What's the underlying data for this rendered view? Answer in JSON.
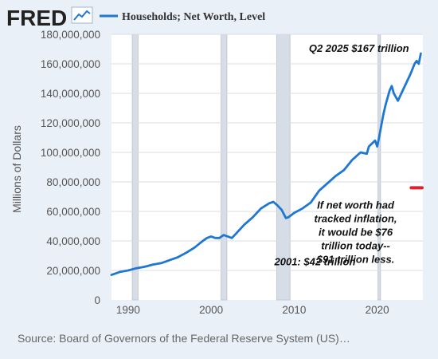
{
  "header": {
    "logo_text": "FRED",
    "logo_icon": "trend-line-icon",
    "legend_label": "Households; Net Worth, Level"
  },
  "colors": {
    "series": "#1f77d4",
    "recession_band": "#d7dde6",
    "plot_background": "#ffffff",
    "page_background": "#eaf0f8",
    "inflation_marker": "#e0202a"
  },
  "chart_data": {
    "type": "line",
    "title": "",
    "xlabel": "",
    "ylabel": "Millions of Dollars",
    "xlim": [
      1988.0,
      2025.5
    ],
    "ylim": [
      0,
      180000000
    ],
    "x_ticks": [
      1990,
      2000,
      2010,
      2020
    ],
    "x_tick_labels": [
      "1990",
      "2000",
      "2010",
      "2020"
    ],
    "y_ticks": [
      0,
      20000000,
      40000000,
      60000000,
      80000000,
      100000000,
      120000000,
      140000000,
      160000000,
      180000000
    ],
    "y_tick_labels": [
      "0",
      "20,000,000",
      "40,000,000",
      "60,000,000",
      "80,000,000",
      "100,000,000",
      "120,000,000",
      "140,000,000",
      "160,000,000",
      "180,000,000"
    ],
    "grid": true,
    "recessions": [
      {
        "start": 1990.5,
        "end": 1991.2
      },
      {
        "start": 2001.2,
        "end": 2001.9
      },
      {
        "start": 2007.9,
        "end": 2009.5
      },
      {
        "start": 2020.1,
        "end": 2020.4
      }
    ],
    "series": [
      {
        "name": "Households; Net Worth, Level",
        "x": [
          1988.0,
          1989.0,
          1990.0,
          1991.0,
          1992.0,
          1993.0,
          1994.0,
          1995.0,
          1996.0,
          1997.0,
          1998.0,
          1999.0,
          1999.5,
          2000.0,
          2000.5,
          2001.0,
          2001.5,
          2002.0,
          2002.5,
          2003.0,
          2004.0,
          2005.0,
          2006.0,
          2007.0,
          2007.5,
          2008.0,
          2008.5,
          2009.0,
          2009.3,
          2010.0,
          2011.0,
          2012.0,
          2013.0,
          2014.0,
          2015.0,
          2016.0,
          2017.0,
          2018.0,
          2018.75,
          2019.0,
          2019.75,
          2020.0,
          2020.25,
          2020.75,
          2021.0,
          2021.5,
          2021.75,
          2022.0,
          2022.5,
          2022.75,
          2023.0,
          2023.5,
          2024.0,
          2024.5,
          2024.75,
          2025.0,
          2025.25
        ],
        "values": [
          17000000,
          19000000,
          20000000,
          21500000,
          22500000,
          24000000,
          25000000,
          27000000,
          29000000,
          32000000,
          35500000,
          40000000,
          42000000,
          43000000,
          42000000,
          42000000,
          44000000,
          43000000,
          42000000,
          45000000,
          51000000,
          56000000,
          62000000,
          65500000,
          66500000,
          64000000,
          61000000,
          55500000,
          56000000,
          59000000,
          62000000,
          66000000,
          74000000,
          79000000,
          84000000,
          88000000,
          95000000,
          100000000,
          99000000,
          104000000,
          108000000,
          104000000,
          111000000,
          126000000,
          132000000,
          142000000,
          145000000,
          140000000,
          135000000,
          138000000,
          141000000,
          147000000,
          153000000,
          160000000,
          162000000,
          160000000,
          167000000
        ]
      }
    ],
    "inflation_marker": {
      "x_start": 2024.1,
      "x_end": 2025.4,
      "y": 76000000
    },
    "annotations": [
      {
        "text": "Q2 2025 $167 trillion",
        "x": 2017.8,
        "y": 168000000
      },
      {
        "text": "2001: $42 trillion",
        "x": 2012.5,
        "y": 23500000
      },
      {
        "lines": [
          "If net worth had",
          "tracked inflation,",
          "it would be $76",
          "trillion today--",
          "$91 trillion less."
        ],
        "x": 2017.4,
        "y": 62000000
      }
    ]
  },
  "footer": {
    "source": "Source: Board of Governors of the Federal Reserve System (US)…"
  }
}
